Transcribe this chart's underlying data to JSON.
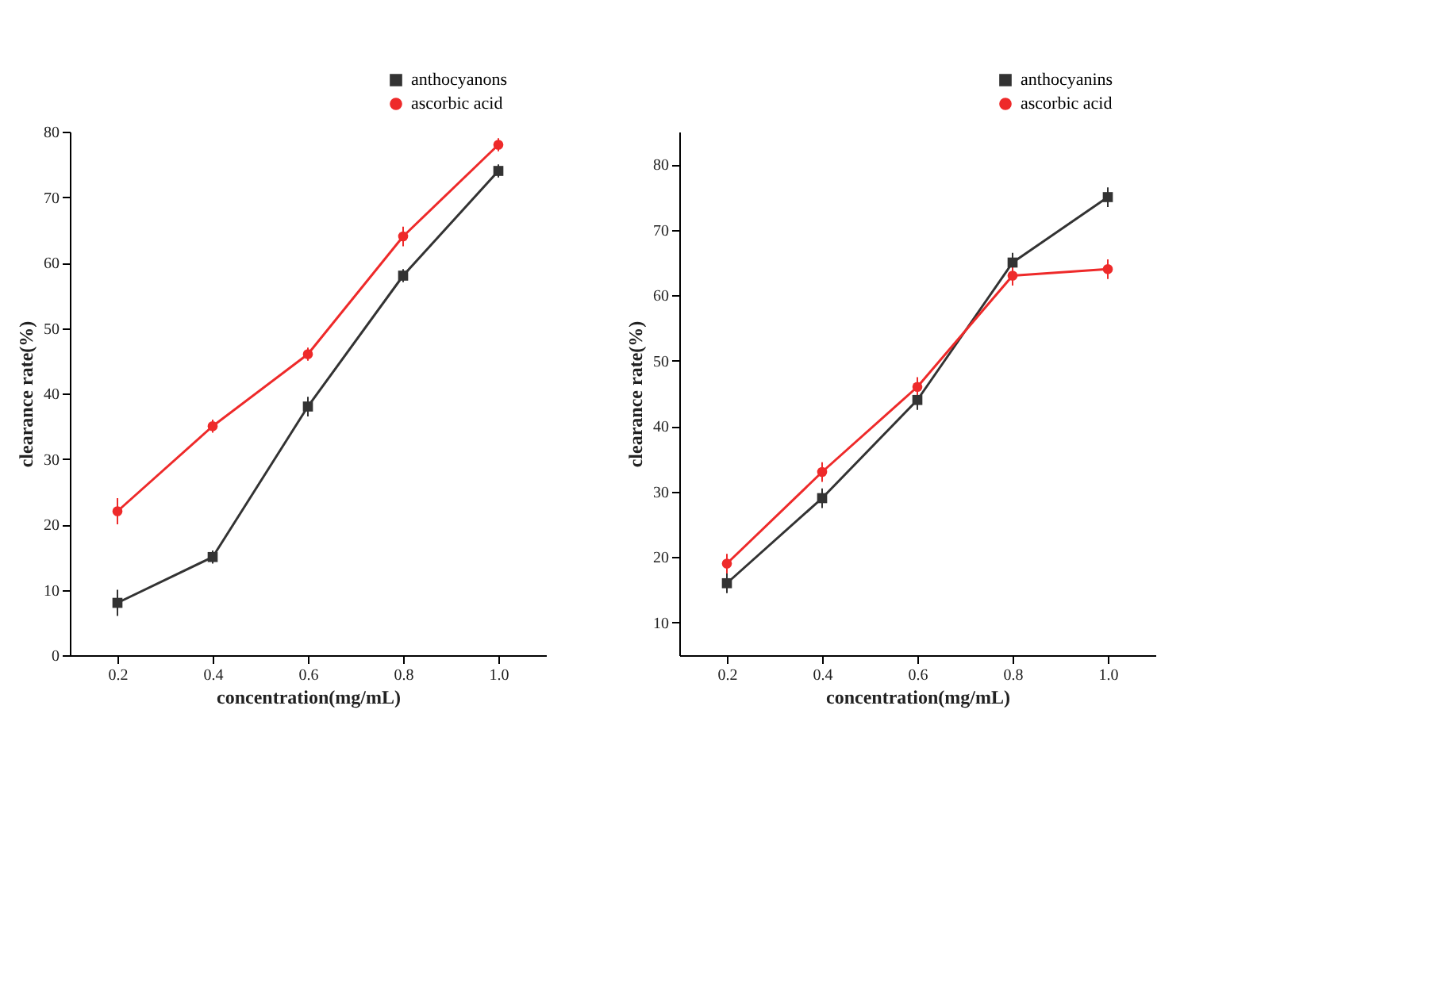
{
  "chart_data": [
    {
      "type": "line",
      "xlabel": "concentration(mg/mL)",
      "ylabel": "clearance rate(%)",
      "x": [
        0.2,
        0.4,
        0.6,
        0.8,
        1.0
      ],
      "xlim": [
        0.1,
        1.1
      ],
      "xticks": [
        0.2,
        0.4,
        0.6,
        0.8,
        {
          "value": 1.0,
          "label": "1.0"
        }
      ],
      "ylim": [
        0,
        80
      ],
      "yticks": [
        0,
        10,
        20,
        30,
        40,
        50,
        60,
        70,
        80
      ],
      "grid": false,
      "legend": "top right",
      "series": [
        {
          "name": "anthocyanons",
          "color": "#333333",
          "marker": "square",
          "values": [
            8,
            15,
            38,
            58,
            74
          ],
          "errors": [
            2,
            1,
            1.5,
            1,
            1
          ]
        },
        {
          "name": "ascorbic acid",
          "color": "#ee2a2a",
          "marker": "circle",
          "values": [
            22,
            35,
            46,
            64,
            78
          ],
          "errors": [
            2,
            1,
            1,
            1.5,
            1
          ]
        }
      ]
    },
    {
      "type": "line",
      "xlabel": "concentration(mg/mL)",
      "ylabel": "clearance rate(%)",
      "x": [
        0.2,
        0.4,
        0.6,
        0.8,
        1.0
      ],
      "xlim": [
        0.1,
        1.1
      ],
      "xticks": [
        0.2,
        0.4,
        0.6,
        0.8,
        {
          "value": 1.0,
          "label": "1.0"
        }
      ],
      "ylim": [
        5,
        85
      ],
      "yticks": [
        10,
        20,
        30,
        40,
        50,
        60,
        70,
        80
      ],
      "grid": false,
      "legend": "top right",
      "series": [
        {
          "name": "anthocyanins",
          "color": "#333333",
          "marker": "square",
          "values": [
            16,
            29,
            44,
            65,
            75
          ],
          "errors": [
            1.5,
            1.5,
            1.5,
            1.5,
            1.5
          ]
        },
        {
          "name": "ascorbic acid",
          "color": "#ee2a2a",
          "marker": "circle",
          "values": [
            19,
            33,
            46,
            63,
            64
          ],
          "errors": [
            1.5,
            1.5,
            1.5,
            1.5,
            1.5
          ]
        }
      ]
    }
  ]
}
